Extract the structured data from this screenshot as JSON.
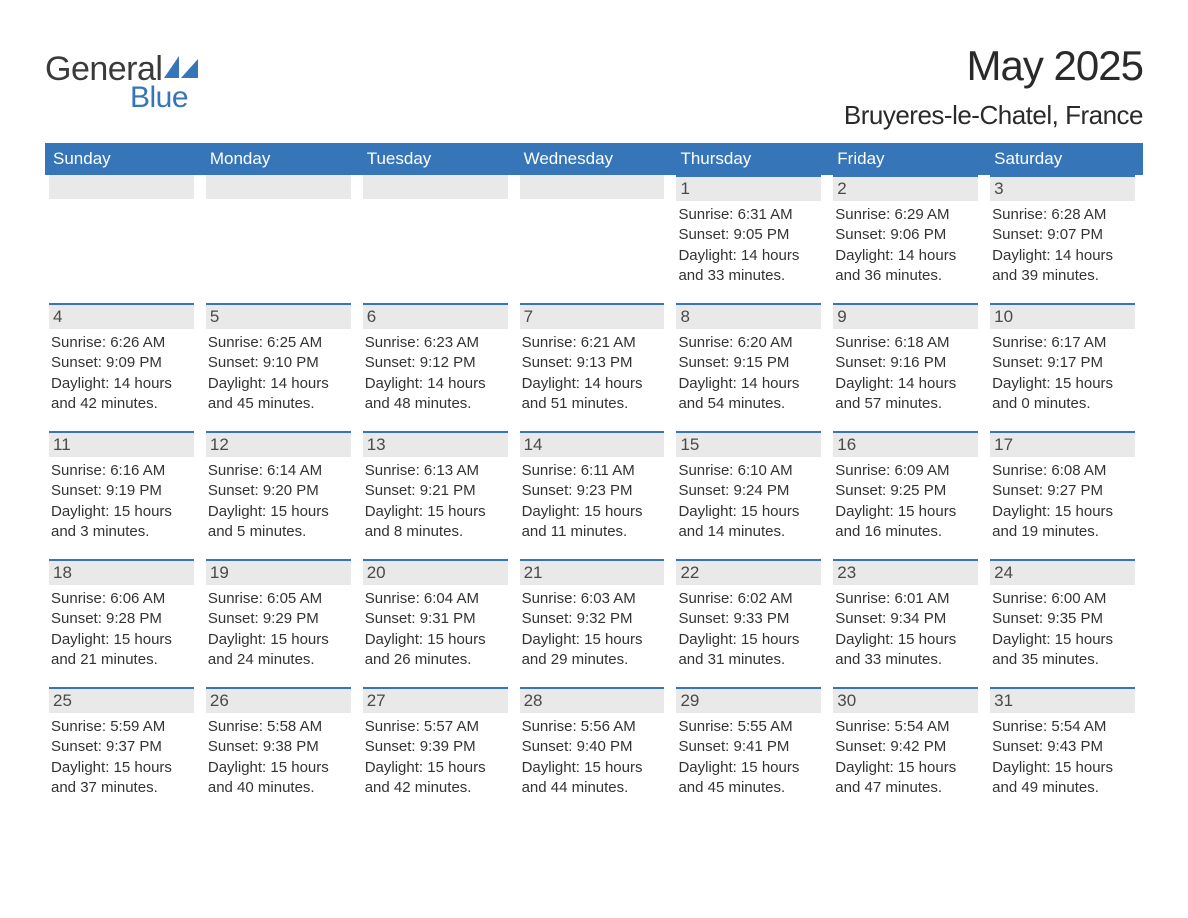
{
  "brand": {
    "general": "General",
    "blue": "Blue"
  },
  "title": {
    "month": "May 2025",
    "location": "Bruyeres-le-Chatel, France"
  },
  "style": {
    "header_bg": "#3575b8",
    "header_text": "#ffffff",
    "daynum_bg": "#e9e9e9",
    "daynum_border": "#3575b8",
    "daynum_text": "#4a4a4a",
    "body_text": "#333333",
    "logo_general_color": "#3a3a3a",
    "logo_blue_color": "#3575b8",
    "month_title_fontsize": 42,
    "location_fontsize": 26,
    "weekday_fontsize": 17,
    "daynum_fontsize": 17,
    "info_fontsize": 15
  },
  "weekdays": [
    "Sunday",
    "Monday",
    "Tuesday",
    "Wednesday",
    "Thursday",
    "Friday",
    "Saturday"
  ],
  "labels": {
    "sunrise": "Sunrise: ",
    "sunset": "Sunset: ",
    "daylight": "Daylight: "
  },
  "weeks": [
    [
      null,
      null,
      null,
      null,
      {
        "n": "1",
        "sunrise": "6:31 AM",
        "sunset": "9:05 PM",
        "daylight": "14 hours and 33 minutes."
      },
      {
        "n": "2",
        "sunrise": "6:29 AM",
        "sunset": "9:06 PM",
        "daylight": "14 hours and 36 minutes."
      },
      {
        "n": "3",
        "sunrise": "6:28 AM",
        "sunset": "9:07 PM",
        "daylight": "14 hours and 39 minutes."
      }
    ],
    [
      {
        "n": "4",
        "sunrise": "6:26 AM",
        "sunset": "9:09 PM",
        "daylight": "14 hours and 42 minutes."
      },
      {
        "n": "5",
        "sunrise": "6:25 AM",
        "sunset": "9:10 PM",
        "daylight": "14 hours and 45 minutes."
      },
      {
        "n": "6",
        "sunrise": "6:23 AM",
        "sunset": "9:12 PM",
        "daylight": "14 hours and 48 minutes."
      },
      {
        "n": "7",
        "sunrise": "6:21 AM",
        "sunset": "9:13 PM",
        "daylight": "14 hours and 51 minutes."
      },
      {
        "n": "8",
        "sunrise": "6:20 AM",
        "sunset": "9:15 PM",
        "daylight": "14 hours and 54 minutes."
      },
      {
        "n": "9",
        "sunrise": "6:18 AM",
        "sunset": "9:16 PM",
        "daylight": "14 hours and 57 minutes."
      },
      {
        "n": "10",
        "sunrise": "6:17 AM",
        "sunset": "9:17 PM",
        "daylight": "15 hours and 0 minutes."
      }
    ],
    [
      {
        "n": "11",
        "sunrise": "6:16 AM",
        "sunset": "9:19 PM",
        "daylight": "15 hours and 3 minutes."
      },
      {
        "n": "12",
        "sunrise": "6:14 AM",
        "sunset": "9:20 PM",
        "daylight": "15 hours and 5 minutes."
      },
      {
        "n": "13",
        "sunrise": "6:13 AM",
        "sunset": "9:21 PM",
        "daylight": "15 hours and 8 minutes."
      },
      {
        "n": "14",
        "sunrise": "6:11 AM",
        "sunset": "9:23 PM",
        "daylight": "15 hours and 11 minutes."
      },
      {
        "n": "15",
        "sunrise": "6:10 AM",
        "sunset": "9:24 PM",
        "daylight": "15 hours and 14 minutes."
      },
      {
        "n": "16",
        "sunrise": "6:09 AM",
        "sunset": "9:25 PM",
        "daylight": "15 hours and 16 minutes."
      },
      {
        "n": "17",
        "sunrise": "6:08 AM",
        "sunset": "9:27 PM",
        "daylight": "15 hours and 19 minutes."
      }
    ],
    [
      {
        "n": "18",
        "sunrise": "6:06 AM",
        "sunset": "9:28 PM",
        "daylight": "15 hours and 21 minutes."
      },
      {
        "n": "19",
        "sunrise": "6:05 AM",
        "sunset": "9:29 PM",
        "daylight": "15 hours and 24 minutes."
      },
      {
        "n": "20",
        "sunrise": "6:04 AM",
        "sunset": "9:31 PM",
        "daylight": "15 hours and 26 minutes."
      },
      {
        "n": "21",
        "sunrise": "6:03 AM",
        "sunset": "9:32 PM",
        "daylight": "15 hours and 29 minutes."
      },
      {
        "n": "22",
        "sunrise": "6:02 AM",
        "sunset": "9:33 PM",
        "daylight": "15 hours and 31 minutes."
      },
      {
        "n": "23",
        "sunrise": "6:01 AM",
        "sunset": "9:34 PM",
        "daylight": "15 hours and 33 minutes."
      },
      {
        "n": "24",
        "sunrise": "6:00 AM",
        "sunset": "9:35 PM",
        "daylight": "15 hours and 35 minutes."
      }
    ],
    [
      {
        "n": "25",
        "sunrise": "5:59 AM",
        "sunset": "9:37 PM",
        "daylight": "15 hours and 37 minutes."
      },
      {
        "n": "26",
        "sunrise": "5:58 AM",
        "sunset": "9:38 PM",
        "daylight": "15 hours and 40 minutes."
      },
      {
        "n": "27",
        "sunrise": "5:57 AM",
        "sunset": "9:39 PM",
        "daylight": "15 hours and 42 minutes."
      },
      {
        "n": "28",
        "sunrise": "5:56 AM",
        "sunset": "9:40 PM",
        "daylight": "15 hours and 44 minutes."
      },
      {
        "n": "29",
        "sunrise": "5:55 AM",
        "sunset": "9:41 PM",
        "daylight": "15 hours and 45 minutes."
      },
      {
        "n": "30",
        "sunrise": "5:54 AM",
        "sunset": "9:42 PM",
        "daylight": "15 hours and 47 minutes."
      },
      {
        "n": "31",
        "sunrise": "5:54 AM",
        "sunset": "9:43 PM",
        "daylight": "15 hours and 49 minutes."
      }
    ]
  ]
}
